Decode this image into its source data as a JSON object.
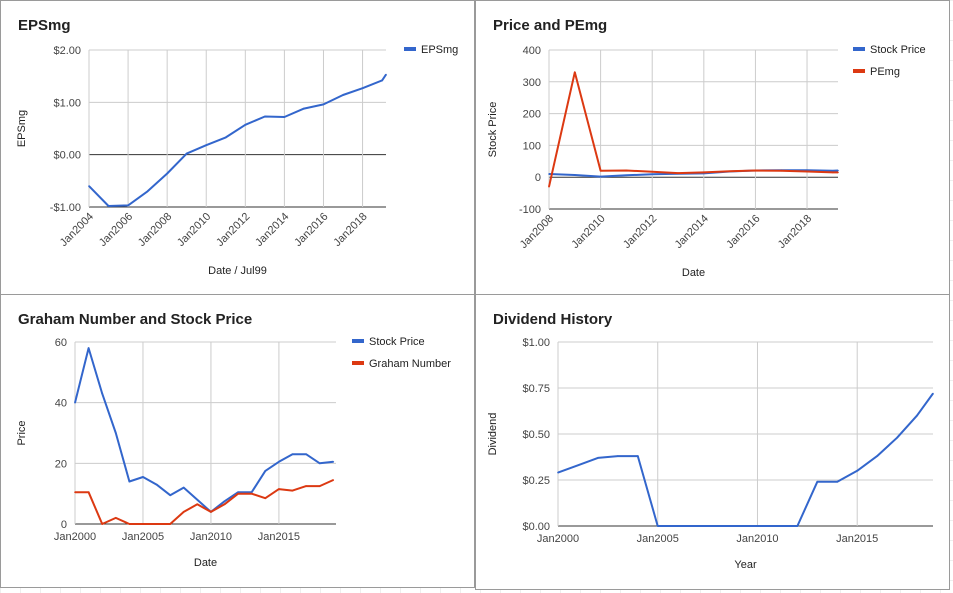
{
  "chart_data": [
    {
      "type": "line",
      "title": "EPSmg",
      "xlabel": "Date / Jul99",
      "ylabel": "EPSmg",
      "xlim": [
        2004,
        2019.2
      ],
      "ylim": [
        -1,
        2
      ],
      "x_ticks": [
        {
          "v": 2004,
          "label": "Jan2004"
        },
        {
          "v": 2006,
          "label": "Jan2006"
        },
        {
          "v": 2008,
          "label": "Jan2008"
        },
        {
          "v": 2010,
          "label": "Jan2010"
        },
        {
          "v": 2012,
          "label": "Jan2012"
        },
        {
          "v": 2014,
          "label": "Jan2014"
        },
        {
          "v": 2016,
          "label": "Jan2016"
        },
        {
          "v": 2018,
          "label": "Jan2018"
        }
      ],
      "y_ticks": [
        {
          "v": -1,
          "label": "-$1.00"
        },
        {
          "v": 0,
          "label": "$0.00"
        },
        {
          "v": 1,
          "label": "$1.00"
        },
        {
          "v": 2,
          "label": "$2.00"
        }
      ],
      "grid": true,
      "legend": "right",
      "series": [
        {
          "name": "EPSmg",
          "color": "#3366cc",
          "x": [
            2004,
            2005,
            2006,
            2007,
            2008,
            2009,
            2010,
            2011,
            2012,
            2013,
            2014,
            2015,
            2016,
            2017,
            2018,
            2019,
            2019.2
          ],
          "y": [
            -0.6,
            -0.98,
            -0.97,
            -0.7,
            -0.36,
            0.02,
            0.18,
            0.33,
            0.57,
            0.73,
            0.72,
            0.88,
            0.96,
            1.14,
            1.27,
            1.42,
            1.53
          ]
        }
      ]
    },
    {
      "type": "line",
      "title": "Price and PEmg",
      "xlabel": "Date",
      "ylabel": "Stock Price",
      "xlim": [
        2008,
        2019.2
      ],
      "ylim": [
        -100,
        400
      ],
      "x_ticks": [
        {
          "v": 2008,
          "label": "Jan2008"
        },
        {
          "v": 2010,
          "label": "Jan2010"
        },
        {
          "v": 2012,
          "label": "Jan2012"
        },
        {
          "v": 2014,
          "label": "Jan2014"
        },
        {
          "v": 2016,
          "label": "Jan2016"
        },
        {
          "v": 2018,
          "label": "Jan2018"
        }
      ],
      "y_ticks": [
        {
          "v": -100,
          "label": "-100"
        },
        {
          "v": 0,
          "label": "0"
        },
        {
          "v": 100,
          "label": "100"
        },
        {
          "v": 200,
          "label": "200"
        },
        {
          "v": 300,
          "label": "300"
        },
        {
          "v": 400,
          "label": "400"
        }
      ],
      "grid": true,
      "legend": "right",
      "series": [
        {
          "name": "Stock Price",
          "color": "#3366cc",
          "x": [
            2008,
            2009,
            2010,
            2011,
            2012,
            2013,
            2014,
            2015,
            2016,
            2017,
            2018,
            2019,
            2019.2
          ],
          "y": [
            10,
            7,
            2,
            6,
            9,
            11,
            12,
            18,
            21,
            22,
            22,
            20,
            21
          ]
        },
        {
          "name": "PEmg",
          "color": "#dc3912",
          "x": [
            2008,
            2009,
            2010,
            2011,
            2012,
            2013,
            2014,
            2015,
            2016,
            2017,
            2018,
            2019,
            2019.2
          ],
          "y": [
            -30,
            330,
            20,
            21,
            17,
            13,
            15,
            19,
            21,
            20,
            18,
            15,
            15
          ]
        }
      ]
    },
    {
      "type": "line",
      "title": "Graham Number and Stock Price",
      "xlabel": "Date",
      "ylabel": "Price",
      "xlim": [
        2000,
        2019.2
      ],
      "ylim": [
        0,
        60
      ],
      "x_ticks": [
        {
          "v": 2000,
          "label": "Jan2000"
        },
        {
          "v": 2005,
          "label": "Jan2005"
        },
        {
          "v": 2010,
          "label": "Jan2010"
        },
        {
          "v": 2015,
          "label": "Jan2015"
        }
      ],
      "y_ticks": [
        {
          "v": 0,
          "label": "0"
        },
        {
          "v": 20,
          "label": "20"
        },
        {
          "v": 40,
          "label": "40"
        },
        {
          "v": 60,
          "label": "60"
        }
      ],
      "grid": true,
      "legend": "right",
      "series": [
        {
          "name": "Stock Price",
          "color": "#3366cc",
          "x": [
            2000,
            2001,
            2002,
            2003,
            2004,
            2005,
            2006,
            2007,
            2008,
            2009,
            2010,
            2011,
            2012,
            2013,
            2014,
            2015,
            2016,
            2017,
            2018,
            2019
          ],
          "y": [
            40,
            58,
            43,
            30,
            14,
            15.5,
            13,
            9.5,
            12,
            8,
            4,
            7.5,
            10.5,
            10.5,
            17.5,
            20.5,
            23,
            23,
            20,
            20.5
          ]
        },
        {
          "name": "Graham Number",
          "color": "#dc3912",
          "x": [
            2000,
            2001,
            2002,
            2003,
            2004,
            2005,
            2006,
            2007,
            2008,
            2009,
            2010,
            2011,
            2012,
            2013,
            2014,
            2015,
            2016,
            2017,
            2018,
            2019
          ],
          "y": [
            10.5,
            10.5,
            0,
            2,
            0,
            0,
            0,
            0,
            4,
            6.5,
            4,
            6.5,
            10,
            10,
            8.5,
            11.5,
            11,
            12.5,
            12.5,
            14.5
          ]
        }
      ]
    },
    {
      "type": "line",
      "title": "Dividend History",
      "xlabel": "Year",
      "ylabel": "Dividend",
      "xlim": [
        2000,
        2018.8
      ],
      "ylim": [
        0,
        1
      ],
      "x_ticks": [
        {
          "v": 2000,
          "label": "Jan2000"
        },
        {
          "v": 2005,
          "label": "Jan2005"
        },
        {
          "v": 2010,
          "label": "Jan2010"
        },
        {
          "v": 2015,
          "label": "Jan2015"
        }
      ],
      "y_ticks": [
        {
          "v": 0,
          "label": "$0.00"
        },
        {
          "v": 0.25,
          "label": "$0.25"
        },
        {
          "v": 0.5,
          "label": "$0.50"
        },
        {
          "v": 0.75,
          "label": "$0.75"
        },
        {
          "v": 1,
          "label": "$1.00"
        }
      ],
      "grid": true,
      "legend": "none",
      "series": [
        {
          "name": "",
          "color": "#3366cc",
          "x": [
            2000,
            2001,
            2002,
            2003,
            2004,
            2005,
            2006,
            2007,
            2008,
            2009,
            2010,
            2011,
            2012,
            2013,
            2014,
            2015,
            2016,
            2017,
            2018,
            2018.8
          ],
          "y": [
            0.29,
            0.33,
            0.37,
            0.38,
            0.38,
            0,
            0,
            0,
            0,
            0,
            0,
            0,
            0,
            0.24,
            0.24,
            0.3,
            0.38,
            0.48,
            0.6,
            0.72
          ]
        }
      ]
    }
  ]
}
